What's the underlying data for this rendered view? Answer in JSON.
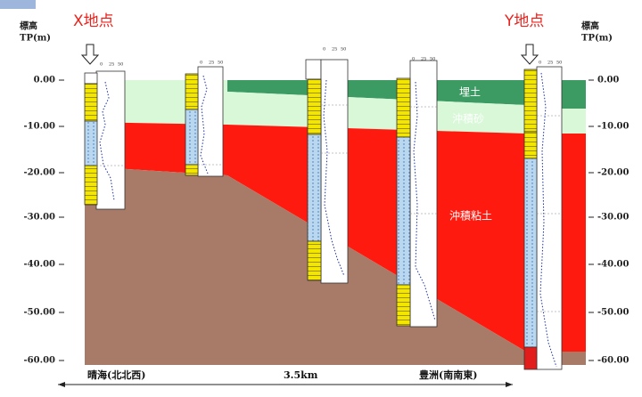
{
  "axis": {
    "title": "標高",
    "unit": "TP(m)",
    "ticks": [
      "0.00",
      "-10.00",
      "-20.00",
      "-30.00",
      "-40.00",
      "-50.00",
      "-60.00"
    ]
  },
  "points": {
    "x": "X地点",
    "y": "Y地点"
  },
  "layers": {
    "fill": "埋土",
    "sand": "沖積砂",
    "clay": "沖積粘土"
  },
  "plot_scale": [
    "0",
    "25",
    "50"
  ],
  "bottom": {
    "left": "晴海(北北西)",
    "distance": "3.5km",
    "right": "豊洲(南南東)"
  }
}
